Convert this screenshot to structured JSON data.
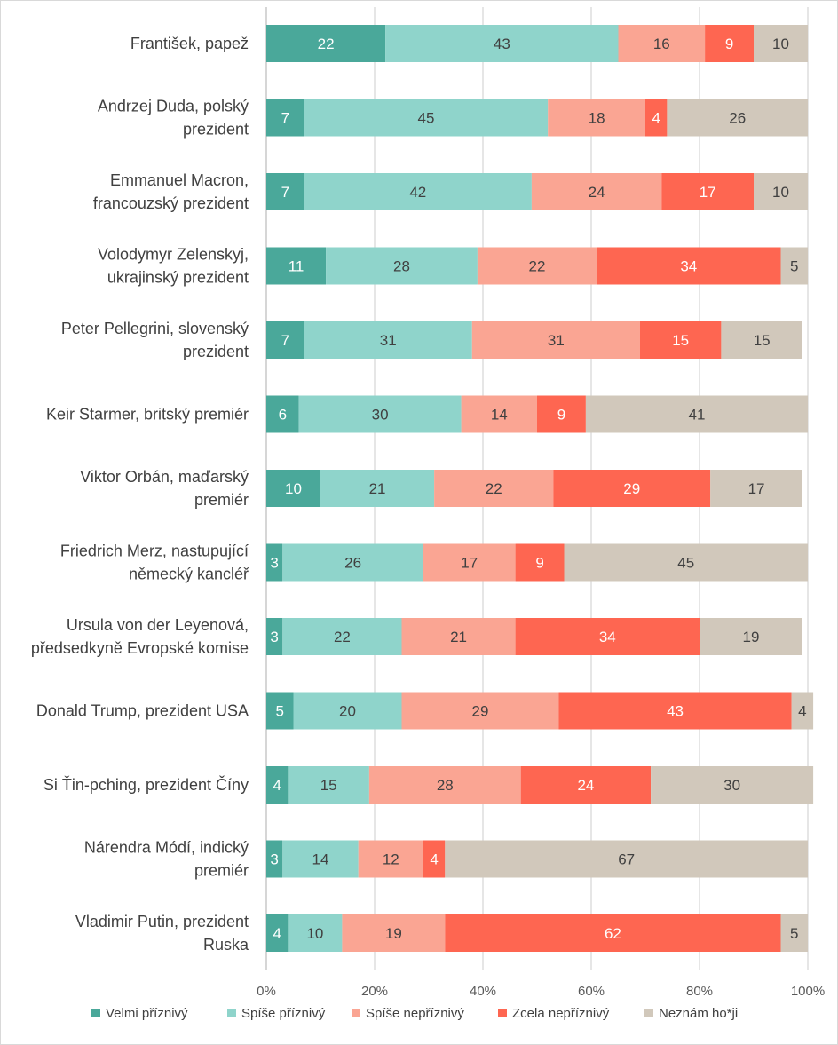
{
  "chart_data": {
    "type": "bar",
    "orientation": "horizontal",
    "stacked": true,
    "normalized_percent": true,
    "categories": [
      [
        "František, papež"
      ],
      [
        "Andrzej Duda, polský",
        "prezident"
      ],
      [
        "Emmanuel Macron,",
        "francouzský prezident"
      ],
      [
        "Volodymyr Zelenskyj,",
        "ukrajinský prezident"
      ],
      [
        "Peter Pellegrini, slovenský",
        "prezident"
      ],
      [
        "Keir Starmer, britský premiér"
      ],
      [
        "Viktor Orbán, maďarský",
        "premiér"
      ],
      [
        "Friedrich Merz, nastupující",
        "německý kancléř"
      ],
      [
        "Ursula von der Leyenová,",
        "předsedkyně Evropské komise"
      ],
      [
        "Donald Trump, prezident USA"
      ],
      [
        "Si Ťin-pching, prezident Číny"
      ],
      [
        "Nárendra Módí, indický",
        "premiér"
      ],
      [
        "Vladimir Putin, prezident",
        "Ruska"
      ]
    ],
    "series": [
      {
        "name": "Velmi příznivý",
        "color": "#4aa89a",
        "label_color": "#ffffff",
        "values": [
          22,
          7,
          7,
          11,
          7,
          6,
          10,
          3,
          3,
          5,
          4,
          3,
          4
        ]
      },
      {
        "name": "Spíše příznivý",
        "color": "#8fd4cb",
        "label_color": "#404040",
        "values": [
          43,
          45,
          42,
          28,
          31,
          30,
          21,
          26,
          22,
          20,
          15,
          14,
          10
        ]
      },
      {
        "name": "Spíše nepříznivý",
        "color": "#faa593",
        "label_color": "#404040",
        "values": [
          16,
          18,
          24,
          22,
          31,
          14,
          22,
          17,
          21,
          29,
          28,
          12,
          19
        ]
      },
      {
        "name": "Zcela nepříznivý",
        "color": "#fe6651",
        "label_color": "#ffffff",
        "values": [
          9,
          4,
          17,
          34,
          15,
          9,
          29,
          9,
          34,
          43,
          24,
          4,
          62
        ]
      },
      {
        "name": "Neznám ho*ji",
        "color": "#d1c8bb",
        "label_color": "#404040",
        "values": [
          10,
          26,
          10,
          5,
          15,
          41,
          17,
          45,
          19,
          4,
          30,
          67,
          5
        ]
      }
    ],
    "xticks": [
      "0%",
      "20%",
      "40%",
      "60%",
      "80%",
      "100%"
    ],
    "xlim": [
      0,
      100
    ],
    "grid": true,
    "legend": "bottom",
    "gridline_color": "#d9d9d9",
    "axis_line_color": "#bfbfbf"
  }
}
